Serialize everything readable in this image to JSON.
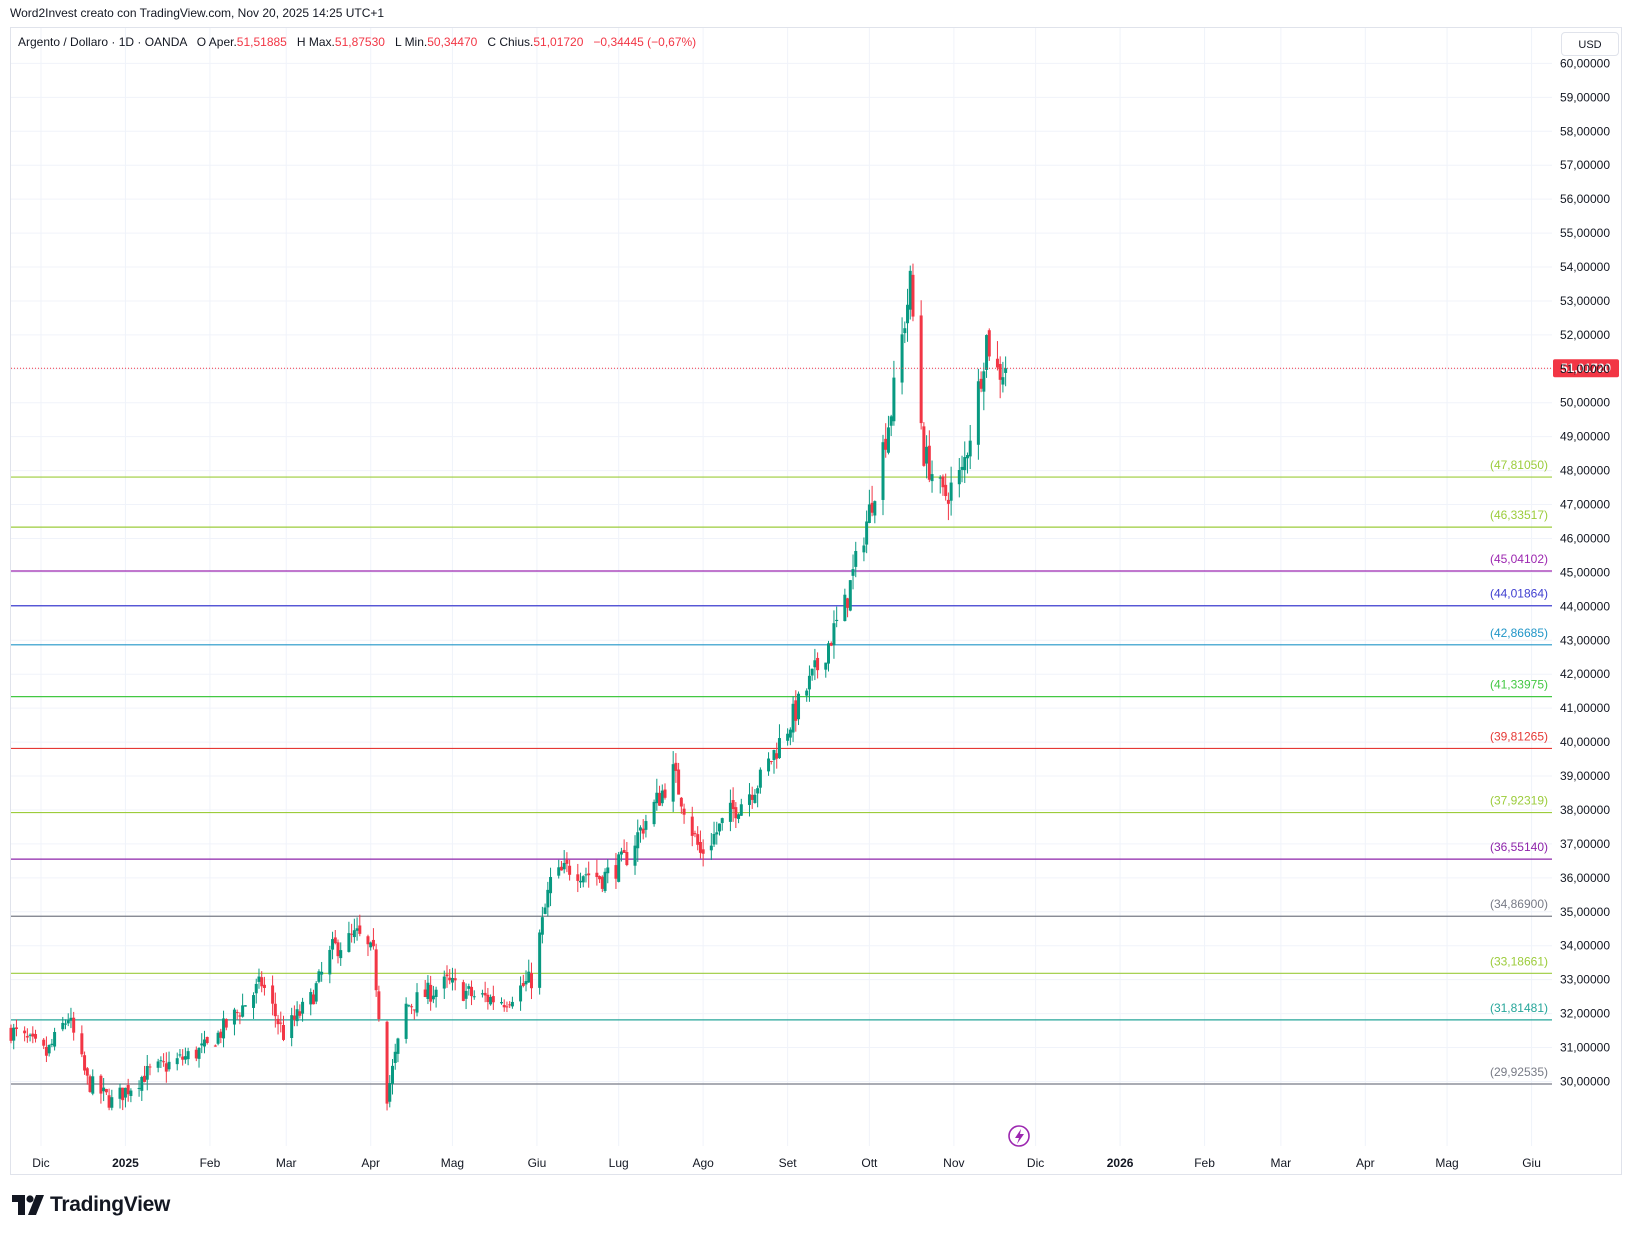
{
  "caption": "Word2Invest creato con TradingView.com, Nov 20, 2025 14:25 UTC+1",
  "legend": {
    "symbol": "Argento / Dollaro · 1D · OANDA",
    "o_label": "O",
    "open_label": "Aper.",
    "open": "51,51885",
    "h_label": "H",
    "high_label": "Max.",
    "high": "51,87530",
    "l_label": "L",
    "low_label": "Min.",
    "low": "50,34470",
    "c_label": "C",
    "close_label": "Chius.",
    "close": "51,01720",
    "change": "−0,34445 (−0,67%)"
  },
  "currency": "USD",
  "brand": "TradingView",
  "colors": {
    "up": "#089981",
    "down": "#f23645",
    "grid": "#f0f3fa",
    "last_price": "#f23645"
  },
  "chart_data": {
    "type": "candlestick",
    "symbol": "XAGUSD",
    "timeframe": "1D",
    "last_price": 51.0172,
    "last_price_label": "51,01720",
    "y_range": [
      29.1,
      60.1
    ],
    "y_ticks": [
      "30,00000",
      "31,00000",
      "32,00000",
      "33,00000",
      "34,00000",
      "35,00000",
      "36,00000",
      "37,00000",
      "38,00000",
      "39,00000",
      "40,00000",
      "41,00000",
      "42,00000",
      "43,00000",
      "44,00000",
      "45,00000",
      "46,00000",
      "47,00000",
      "48,00000",
      "49,00000",
      "50,00000",
      "51,00000",
      "52,00000",
      "53,00000",
      "54,00000",
      "55,00000",
      "56,00000",
      "57,00000",
      "58,00000",
      "59,00000",
      "60,00000"
    ],
    "x_ticks": [
      {
        "label": "Dic",
        "date": "2024-12-01"
      },
      {
        "label": "2025",
        "date": "2025-01-01",
        "bold": true
      },
      {
        "label": "Feb",
        "date": "2025-02-01"
      },
      {
        "label": "Mar",
        "date": "2025-03-01"
      },
      {
        "label": "Apr",
        "date": "2025-04-01"
      },
      {
        "label": "Mag",
        "date": "2025-05-01"
      },
      {
        "label": "Giu",
        "date": "2025-06-01"
      },
      {
        "label": "Lug",
        "date": "2025-07-01"
      },
      {
        "label": "Ago",
        "date": "2025-08-01"
      },
      {
        "label": "Set",
        "date": "2025-09-01"
      },
      {
        "label": "Ott",
        "date": "2025-10-01"
      },
      {
        "label": "Nov",
        "date": "2025-11-01"
      },
      {
        "label": "Dic",
        "date": "2025-12-01"
      },
      {
        "label": "2026",
        "date": "2026-01-01",
        "bold": true
      },
      {
        "label": "Feb",
        "date": "2026-02-01"
      },
      {
        "label": "Mar",
        "date": "2026-03-01"
      },
      {
        "label": "Apr",
        "date": "2026-04-01"
      },
      {
        "label": "Mag",
        "date": "2026-05-01"
      },
      {
        "label": "Giu",
        "date": "2026-06-01"
      }
    ],
    "levels": [
      {
        "value": 47.8105,
        "label": "(47,81050)",
        "color": "#9ccc3b"
      },
      {
        "value": 46.33517,
        "label": "(46,33517)",
        "color": "#9ccc3b"
      },
      {
        "value": 45.04102,
        "label": "(45,04102)",
        "color": "#9c27b0"
      },
      {
        "value": 44.01864,
        "label": "(44,01864)",
        "color": "#3f3fd0"
      },
      {
        "value": 42.86685,
        "label": "(42,86685)",
        "color": "#2196c8"
      },
      {
        "value": 41.33975,
        "label": "(41,33975)",
        "color": "#43c843"
      },
      {
        "value": 39.81265,
        "label": "(39,81265)",
        "color": "#e53935"
      },
      {
        "value": 37.92319,
        "label": "(37,92319)",
        "color": "#9ccc3b"
      },
      {
        "value": 36.5514,
        "label": "(36,55140)",
        "color": "#8e24aa"
      },
      {
        "value": 34.869,
        "label": "(34,86900)",
        "color": "#787b86"
      },
      {
        "value": 33.18661,
        "label": "(33,18661)",
        "color": "#9ccc3b"
      },
      {
        "value": 31.81481,
        "label": "(31,81481)",
        "color": "#26a69a"
      },
      {
        "value": 29.92535,
        "label": "(29,92535)",
        "color": "#787b86"
      }
    ],
    "path_anchors": [
      {
        "date": "2024-11-20",
        "close": 31.5
      },
      {
        "date": "2024-12-03",
        "close": 30.8
      },
      {
        "date": "2024-12-11",
        "close": 31.9
      },
      {
        "date": "2024-12-18",
        "close": 30.0
      },
      {
        "date": "2024-12-27",
        "close": 29.4
      },
      {
        "date": "2025-01-08",
        "close": 30.2
      },
      {
        "date": "2025-01-20",
        "close": 30.6
      },
      {
        "date": "2025-01-31",
        "close": 31.0
      },
      {
        "date": "2025-02-14",
        "close": 32.3
      },
      {
        "date": "2025-02-20",
        "close": 32.9
      },
      {
        "date": "2025-02-28",
        "close": 31.4
      },
      {
        "date": "2025-03-10",
        "close": 32.4
      },
      {
        "date": "2025-03-18",
        "close": 33.9
      },
      {
        "date": "2025-03-27",
        "close": 34.3
      },
      {
        "date": "2025-04-02",
        "close": 33.7
      },
      {
        "date": "2025-04-07",
        "close": 29.6
      },
      {
        "date": "2025-04-14",
        "close": 32.2
      },
      {
        "date": "2025-04-22",
        "close": 32.6
      },
      {
        "date": "2025-04-29",
        "close": 32.9
      },
      {
        "date": "2025-05-09",
        "close": 32.5
      },
      {
        "date": "2025-05-20",
        "close": 32.4
      },
      {
        "date": "2025-05-30",
        "close": 33.0
      },
      {
        "date": "2025-06-06",
        "close": 35.9
      },
      {
        "date": "2025-06-13",
        "close": 36.3
      },
      {
        "date": "2025-06-25",
        "close": 36.0
      },
      {
        "date": "2025-07-03",
        "close": 36.5
      },
      {
        "date": "2025-07-11",
        "close": 37.7
      },
      {
        "date": "2025-07-21",
        "close": 39.1
      },
      {
        "date": "2025-07-31",
        "close": 36.7
      },
      {
        "date": "2025-08-11",
        "close": 37.9
      },
      {
        "date": "2025-08-22",
        "close": 38.9
      },
      {
        "date": "2025-09-02",
        "close": 40.6
      },
      {
        "date": "2025-09-12",
        "close": 42.2
      },
      {
        "date": "2025-09-22",
        "close": 44.0
      },
      {
        "date": "2025-10-01",
        "close": 46.8
      },
      {
        "date": "2025-10-09",
        "close": 49.8
      },
      {
        "date": "2025-10-16",
        "close": 53.5
      },
      {
        "date": "2025-10-21",
        "close": 48.5
      },
      {
        "date": "2025-10-28",
        "close": 47.2
      },
      {
        "date": "2025-11-04",
        "close": 47.9
      },
      {
        "date": "2025-11-10",
        "close": 50.4
      },
      {
        "date": "2025-11-13",
        "close": 51.9
      },
      {
        "date": "2025-11-17",
        "close": 50.9
      },
      {
        "date": "2025-11-20",
        "close": 51.0172
      }
    ]
  }
}
